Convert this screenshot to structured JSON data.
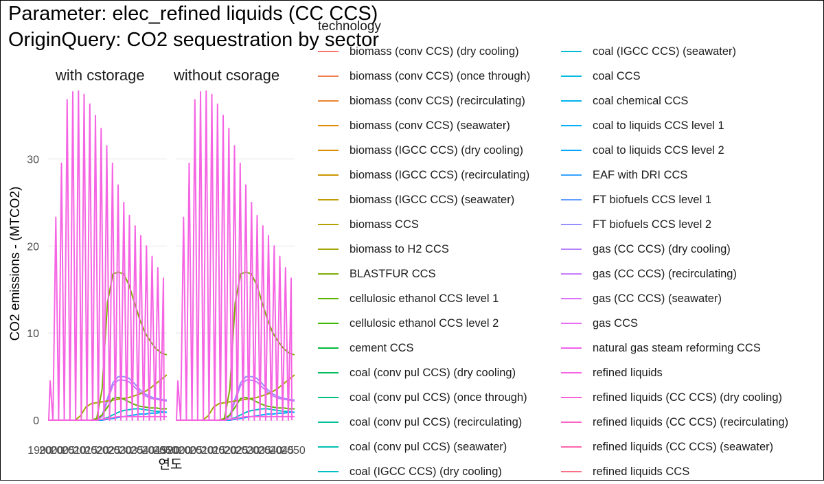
{
  "title_line1": "Parameter: elec_refined liquids (CC CCS)",
  "title_line2": "OriginQuery: CO2 sequestration by sector",
  "chart_data": {
    "type": "line",
    "title": "Parameter: elec_refined liquids (CC CCS) / OriginQuery: CO2 sequestration by sector",
    "xlabel": "연도",
    "ylabel": "CO2 emissions - (MTCO2)",
    "ylim": [
      0,
      38
    ],
    "yticks": [
      0,
      10,
      20,
      30
    ],
    "grid": true,
    "legend_title": "technology",
    "legend_position": "right",
    "x_tick_labels_overlapping": "1990…2050 (illegible overlapping tick labels)",
    "x": [
      1990,
      2005,
      2010,
      2015,
      2020,
      2025,
      2030,
      2035,
      2040,
      2045,
      2050,
      2055,
      2060,
      2065,
      2070,
      2075,
      2080,
      2085,
      2090,
      2095,
      2100
    ],
    "panels": [
      {
        "name": "with cstorage",
        "series": [
          {
            "legend_index": 34,
            "color": "#F564E3",
            "oscillating_peaks": [
              4.5,
              23.3,
              29.5,
              36.8,
              37.7,
              37.8,
              37.4,
              36.3,
              35.0,
              33.5,
              31.5,
              29.5,
              27.0,
              25.0,
              23.5,
              22.3,
              21.2,
              20.0,
              18.8,
              17.5,
              16.3
            ]
          },
          {
            "legend_index": 9,
            "color": "#7CAE00",
            "values": [
              0,
              0,
              0,
              0,
              0,
              0,
              0,
              0.2,
              3.5,
              13.5,
              16.8,
              17.0,
              16.8,
              15.5,
              13.5,
              11.5,
              10.0,
              9.0,
              8.2,
              7.7,
              7.5
            ]
          },
          {
            "legend_index": 27,
            "color": "#9590FF",
            "values": [
              0,
              0,
              0,
              0,
              0,
              0,
              0,
              0,
              0.5,
              2.5,
              4.3,
              5.0,
              5.0,
              4.8,
              4.2,
              3.5,
              3.0,
              2.7,
              2.5,
              2.4,
              2.3
            ]
          },
          {
            "legend_index": 28,
            "color": "#C77CFF",
            "values": [
              0,
              0,
              0,
              0,
              0,
              0,
              0,
              0,
              0.4,
              2.2,
              4.0,
              4.6,
              4.6,
              4.4,
              3.8,
              3.2,
              2.8,
              2.5,
              2.4,
              2.3,
              2.2
            ]
          },
          {
            "legend_index": 8,
            "color": "#A3A500",
            "values": [
              0,
              0,
              0,
              0,
              0.5,
              1.5,
              1.9,
              2.0,
              2.1,
              2.2,
              2.3,
              2.4,
              2.5,
              2.6,
              2.8,
              3.0,
              3.3,
              3.7,
              4.2,
              4.7,
              5.2
            ]
          },
          {
            "legend_index": 10,
            "color": "#5BB300",
            "values": [
              0,
              0,
              0,
              0,
              0,
              0,
              0,
              0.1,
              0.6,
              1.5,
              2.5,
              2.6,
              2.4,
              2.1,
              1.8,
              1.6,
              1.5,
              1.4,
              1.4,
              1.3,
              1.3
            ]
          },
          {
            "legend_index": 19,
            "color": "#00BFC4",
            "values": [
              0,
              0,
              0,
              0,
              0,
              0,
              0,
              0,
              0.1,
              0.3,
              0.6,
              0.9,
              1.1,
              1.2,
              1.3,
              1.3,
              1.2,
              1.1,
              1.0,
              1.0,
              0.9
            ]
          },
          {
            "legend_index": 22,
            "color": "#00A9FF",
            "values": [
              0,
              0,
              0,
              0,
              0,
              0,
              0,
              0,
              0,
              0.1,
              0.2,
              0.3,
              0.4,
              0.5,
              0.6,
              0.7,
              0.7,
              0.8,
              0.8,
              0.9,
              0.9
            ]
          },
          {
            "legend_index": 32,
            "color": "#F763E0",
            "values": [
              0,
              0,
              0,
              0,
              0,
              0,
              0,
              0,
              0.1,
              0.2,
              0.3,
              0.4,
              0.4,
              0.4,
              0.4,
              0.4,
              0.4,
              0.4,
              0.4,
              0.4,
              0.4
            ]
          }
        ]
      },
      {
        "name": "without csorage",
        "series": [
          {
            "legend_index": 34,
            "color": "#F564E3",
            "oscillating_peaks": [
              4.5,
              23.3,
              29.5,
              36.8,
              37.7,
              37.8,
              37.4,
              36.3,
              35.0,
              33.5,
              31.5,
              29.5,
              27.0,
              25.0,
              23.5,
              22.3,
              21.2,
              20.0,
              18.8,
              17.5,
              16.3
            ]
          },
          {
            "legend_index": 9,
            "color": "#7CAE00",
            "values": [
              0,
              0,
              0,
              0,
              0,
              0,
              0,
              0.2,
              3.5,
              13.5,
              16.8,
              17.0,
              16.8,
              15.5,
              13.5,
              11.5,
              10.0,
              9.0,
              8.2,
              7.7,
              7.5
            ]
          },
          {
            "legend_index": 27,
            "color": "#9590FF",
            "values": [
              0,
              0,
              0,
              0,
              0,
              0,
              0,
              0,
              0.5,
              2.5,
              4.3,
              5.0,
              5.0,
              4.8,
              4.2,
              3.5,
              3.0,
              2.7,
              2.5,
              2.4,
              2.3
            ]
          },
          {
            "legend_index": 28,
            "color": "#C77CFF",
            "values": [
              0,
              0,
              0,
              0,
              0,
              0,
              0,
              0,
              0.4,
              2.2,
              4.0,
              4.6,
              4.6,
              4.4,
              3.8,
              3.2,
              2.8,
              2.5,
              2.4,
              2.3,
              2.2
            ]
          },
          {
            "legend_index": 8,
            "color": "#A3A500",
            "values": [
              0,
              0,
              0,
              0,
              0.5,
              1.5,
              1.9,
              2.0,
              2.1,
              2.2,
              2.3,
              2.4,
              2.5,
              2.6,
              2.8,
              3.0,
              3.3,
              3.7,
              4.2,
              4.7,
              5.2
            ]
          },
          {
            "legend_index": 10,
            "color": "#5BB300",
            "values": [
              0,
              0,
              0,
              0,
              0,
              0,
              0,
              0.1,
              0.6,
              1.5,
              2.5,
              2.6,
              2.4,
              2.1,
              1.8,
              1.6,
              1.5,
              1.4,
              1.4,
              1.3,
              1.3
            ]
          },
          {
            "legend_index": 19,
            "color": "#00BFC4",
            "values": [
              0,
              0,
              0,
              0,
              0,
              0,
              0,
              0,
              0.1,
              0.3,
              0.6,
              0.9,
              1.1,
              1.2,
              1.3,
              1.3,
              1.2,
              1.1,
              1.0,
              1.0,
              0.9
            ]
          },
          {
            "legend_index": 22,
            "color": "#00A9FF",
            "values": [
              0,
              0,
              0,
              0,
              0,
              0,
              0,
              0,
              0,
              0.1,
              0.2,
              0.3,
              0.4,
              0.5,
              0.6,
              0.7,
              0.7,
              0.8,
              0.8,
              0.9,
              0.9
            ]
          },
          {
            "legend_index": 32,
            "color": "#F763E0",
            "values": [
              0,
              0,
              0,
              0,
              0,
              0,
              0,
              0,
              0.1,
              0.2,
              0.3,
              0.4,
              0.4,
              0.4,
              0.4,
              0.4,
              0.4,
              0.4,
              0.4,
              0.4,
              0.4
            ]
          }
        ]
      }
    ],
    "legend": [
      {
        "label": "biomass (conv CCS) (dry cooling)",
        "color": "#F8766D"
      },
      {
        "label": "biomass (conv CCS) (once through)",
        "color": "#F27D52"
      },
      {
        "label": "biomass (conv CCS) (recirculating)",
        "color": "#EA8331"
      },
      {
        "label": "biomass (conv CCS) (seawater)",
        "color": "#E08B00"
      },
      {
        "label": "biomass (IGCC CCS) (dry cooling)",
        "color": "#D89000"
      },
      {
        "label": "biomass (IGCC CCS) (recirculating)",
        "color": "#CC9600"
      },
      {
        "label": "biomass (IGCC CCS) (seawater)",
        "color": "#C09B00"
      },
      {
        "label": "biomass CCS",
        "color": "#B2A100"
      },
      {
        "label": "biomass to H2 CCS",
        "color": "#A3A500"
      },
      {
        "label": "BLASTFUR CCS",
        "color": "#7CAE00"
      },
      {
        "label": "cellulosic ethanol CCS level 1",
        "color": "#5BB300"
      },
      {
        "label": "cellulosic ethanol CCS level 2",
        "color": "#39B600"
      },
      {
        "label": "cement CCS",
        "color": "#00BA38"
      },
      {
        "label": "coal (conv pul CCS) (dry cooling)",
        "color": "#00BC59"
      },
      {
        "label": "coal (conv pul CCS) (once through)",
        "color": "#00BF7D"
      },
      {
        "label": "coal (conv pul CCS) (recirculating)",
        "color": "#00C097"
      },
      {
        "label": "coal (conv pul CCS) (seawater)",
        "color": "#00C0AF"
      },
      {
        "label": "coal (IGCC CCS) (dry cooling)",
        "color": "#00BFC4"
      },
      {
        "label": "coal (IGCC CCS) (seawater)",
        "color": "#00BCD8"
      },
      {
        "label": "coal CCS",
        "color": "#00BAE0"
      },
      {
        "label": "coal chemical CCS",
        "color": "#00B4EF"
      },
      {
        "label": "coal to liquids CCS level 1",
        "color": "#00B0F6"
      },
      {
        "label": "coal to liquids CCS level 2",
        "color": "#00A9FF"
      },
      {
        "label": "EAF with DRI CCS",
        "color": "#35A2FF"
      },
      {
        "label": "FT biofuels CCS level 1",
        "color": "#619CFF"
      },
      {
        "label": "FT biofuels CCS level 2",
        "color": "#9590FF"
      },
      {
        "label": "gas (CC CCS) (dry cooling)",
        "color": "#B983FF"
      },
      {
        "label": "gas (CC CCS) (recirculating)",
        "color": "#C77CFF"
      },
      {
        "label": "gas (CC CCS) (seawater)",
        "color": "#DC71FA"
      },
      {
        "label": "gas CCS",
        "color": "#E76BF3"
      },
      {
        "label": "natural gas steam reforming CCS",
        "color": "#F060EB"
      },
      {
        "label": "refined liquids",
        "color": "#F564E3"
      },
      {
        "label": "refined liquids (CC CCS) (dry cooling)",
        "color": "#FA62DB"
      },
      {
        "label": "refined liquids (CC CCS) (recirculating)",
        "color": "#FF61C3"
      },
      {
        "label": "refined liquids (CC CCS) (seawater)",
        "color": "#FF65AC"
      },
      {
        "label": "refined liquids CCS",
        "color": "#FD6F86"
      }
    ]
  }
}
